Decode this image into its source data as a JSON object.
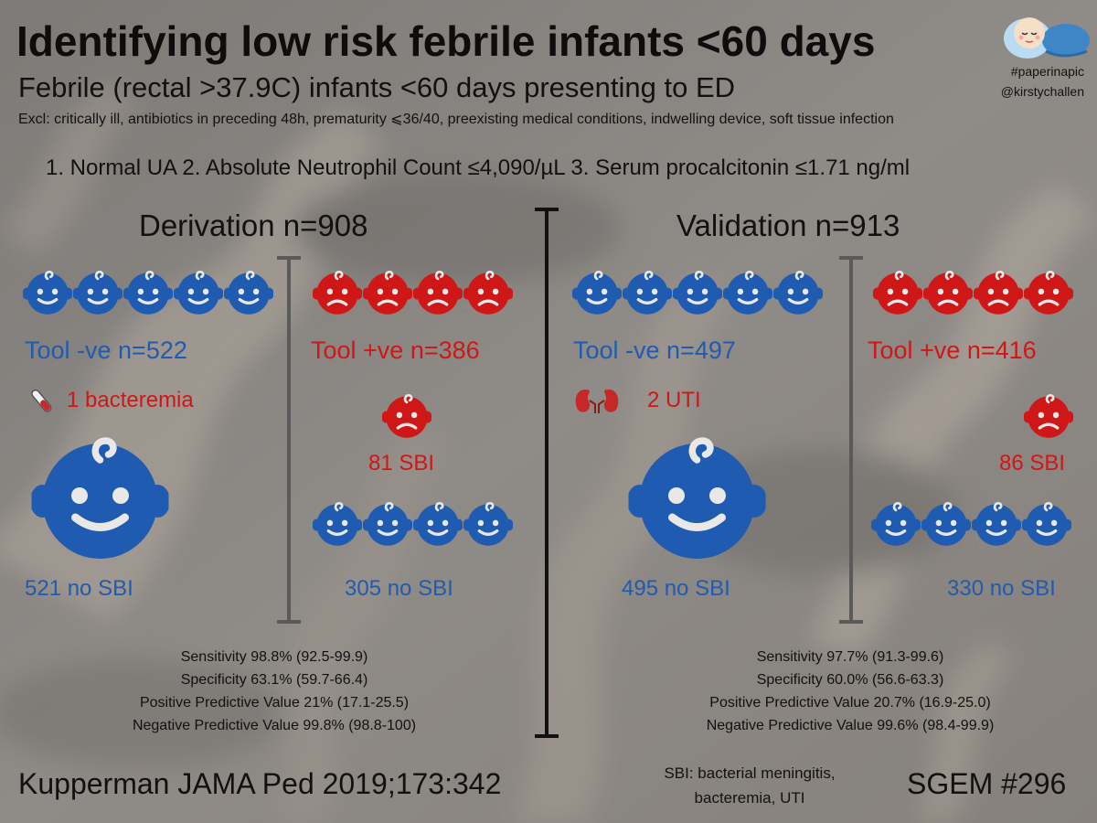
{
  "header": {
    "title": "Identifying low risk febrile infants <60 days",
    "subtitle": "Febrile (rectal >37.9C) infants <60 days presenting to ED",
    "exclusions": "Excl: critically ill, antibiotics in preceding 48h, prematurity ⩽36/40, preexisting medical conditions, indwelling device, soft tissue infection",
    "criteria": "1.  Normal UA 2. Absolute Neutrophil Count ≤4,090/µL 3. Serum procalcitonin ≤1.71 ng/ml",
    "hashtag": "#paperinapic",
    "handle": "@kirstychallen"
  },
  "derivation": {
    "heading": "Derivation n=908",
    "neg_label": "Tool -ve n=522",
    "pos_label": "Tool +ve n=386",
    "neg_event": "1 bacteremia",
    "neg_event_icon": "test-tube-icon",
    "neg_no_sbi": "521 no SBI",
    "pos_sbi": "81 SBI",
    "pos_no_sbi": "305 no SBI",
    "stats": [
      "Sensitivity 98.8% (92.5-99.9)",
      "Specificity 63.1% (59.7-66.4)",
      "Positive Predictive Value 21% (17.1-25.5)",
      "Negative Predictive Value 99.8% (98.8-100)"
    ]
  },
  "validation": {
    "heading": "Validation n=913",
    "neg_label": "Tool -ve n=497",
    "pos_label": "Tool +ve n=416",
    "neg_event": "2 UTI",
    "neg_event_icon": "kidneys-icon",
    "neg_no_sbi": "495 no SBI",
    "pos_sbi": "86 SBI",
    "pos_no_sbi": "330 no SBI",
    "stats": [
      "Sensitivity 97.7% (91.3-99.6)",
      "Specificity 60.0% (56.6-63.3)",
      "Positive Predictive Value 20.7% (16.9-25.0)",
      "Negative Predictive Value 99.6% (98.4-99.9)"
    ]
  },
  "footer": {
    "citation": "Kupperman JAMA Ped 2019;173:342",
    "sbi_note_line1": "SBI: bacterial meningitis,",
    "sbi_note_line2": "bacteremia, UTI",
    "episode": "SGEM #296"
  },
  "colors": {
    "blue": "#1f5bb0",
    "red": "#d01717",
    "background": "#8a8784"
  }
}
